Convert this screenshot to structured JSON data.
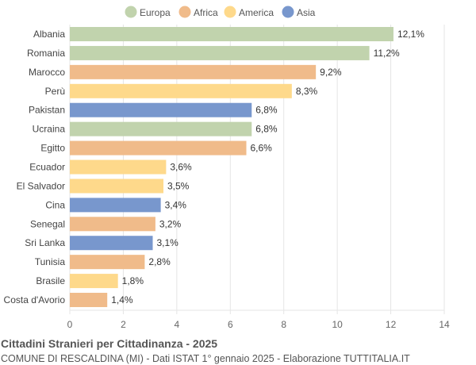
{
  "chart_data": {
    "type": "bar",
    "orientation": "horizontal",
    "title": "Cittadini Stranieri per Cittadinanza - 2025",
    "subtitle": "COMUNE DI RESCALDINA (MI) - Dati ISTAT 1° gennaio 2025 - Elaborazione TUTTITALIA.IT",
    "legend": [
      {
        "name": "Europa",
        "color": "#c1d3ad"
      },
      {
        "name": "Africa",
        "color": "#f0bb8a"
      },
      {
        "name": "America",
        "color": "#fed98b"
      },
      {
        "name": "Asia",
        "color": "#7897cd"
      }
    ],
    "legend_position": "top",
    "categories": [
      "Albania",
      "Romania",
      "Marocco",
      "Perù",
      "Pakistan",
      "Ucraina",
      "Egitto",
      "Ecuador",
      "El Salvador",
      "Cina",
      "Senegal",
      "Sri Lanka",
      "Tunisia",
      "Brasile",
      "Costa d'Avorio"
    ],
    "values": [
      12.1,
      11.2,
      9.2,
      8.3,
      6.8,
      6.8,
      6.6,
      3.6,
      3.5,
      3.4,
      3.2,
      3.1,
      2.8,
      1.8,
      1.4
    ],
    "value_labels": [
      "12,1%",
      "11,2%",
      "9,2%",
      "8,3%",
      "6,8%",
      "6,8%",
      "6,6%",
      "3,6%",
      "3,5%",
      "3,4%",
      "3,2%",
      "3,1%",
      "2,8%",
      "1,8%",
      "1,4%"
    ],
    "groups": [
      "Europa",
      "Europa",
      "Africa",
      "America",
      "Asia",
      "Europa",
      "Africa",
      "America",
      "America",
      "Asia",
      "Africa",
      "Asia",
      "Africa",
      "America",
      "Africa"
    ],
    "xlim": [
      0,
      14
    ],
    "xticks": [
      "0",
      "2",
      "4",
      "6",
      "8",
      "10",
      "12",
      "14"
    ],
    "grid": true
  }
}
